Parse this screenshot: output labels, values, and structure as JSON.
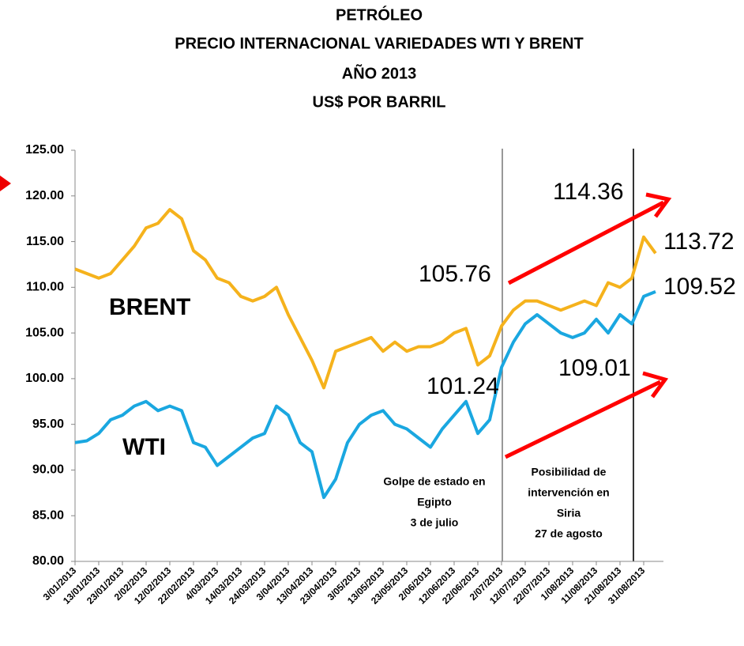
{
  "chart_data": {
    "type": "line",
    "title_lines": [
      "PETRÓLEO",
      "PRECIO INTERNACIONAL VARIEDADES WTI Y BRENT",
      "AÑO 2013",
      "US$ POR BARRIL"
    ],
    "categories": [
      "3/01/2013",
      null,
      "13/01/2013",
      null,
      "23/01/2013",
      null,
      "2/02/2013",
      null,
      "12/02/2013",
      null,
      "22/02/2013",
      null,
      "4/03/2013",
      null,
      "14/03/2013",
      null,
      "24/03/2013",
      null,
      "3/04/2013",
      null,
      "13/04/2013",
      null,
      "23/04/2013",
      null,
      "3/05/2013",
      null,
      "13/05/2013",
      null,
      "23/05/2013",
      null,
      "2/06/2013",
      null,
      "12/06/2013",
      null,
      "22/06/2013",
      null,
      "2/07/2013",
      null,
      "12/07/2013",
      null,
      "22/07/2013",
      null,
      "1/08/2013",
      null,
      "11/08/2013",
      null,
      "21/08/2013",
      null,
      "31/08/2013",
      null
    ],
    "series": [
      {
        "name": "BRENT",
        "color": "#f5b21c",
        "values": [
          112,
          111.5,
          111,
          111.5,
          113,
          114.5,
          116.5,
          117,
          118.5,
          117.5,
          114,
          113,
          111,
          110.5,
          109,
          108.5,
          109,
          110,
          107,
          104.5,
          102,
          99,
          103,
          103.5,
          104,
          104.5,
          103,
          104,
          103,
          103.5,
          103.5,
          104,
          105,
          105.5,
          101.5,
          102.5,
          105.76,
          107.5,
          108.5,
          108.5,
          108,
          107.5,
          108,
          108.5,
          108,
          110.5,
          110,
          111,
          115.5,
          113.72
        ]
      },
      {
        "name": "WTI",
        "color": "#1aa7e0",
        "values": [
          93,
          93.2,
          94,
          95.5,
          96,
          97,
          97.5,
          96.5,
          97,
          96.5,
          93,
          92.5,
          90.5,
          91.5,
          92.5,
          93.5,
          94,
          97,
          96,
          93,
          92,
          87,
          89,
          93,
          95,
          96,
          96.5,
          95,
          94.5,
          93.5,
          92.5,
          94.5,
          96,
          97.5,
          94,
          95.5,
          101.24,
          104,
          106,
          107,
          106,
          105,
          104.5,
          105,
          106.5,
          105,
          107,
          106,
          109,
          109.52
        ]
      }
    ],
    "ylim": [
      80,
      125
    ],
    "yticks": [
      {
        "value": 80,
        "label": "80.00"
      },
      {
        "value": 85,
        "label": "85.00"
      },
      {
        "value": 90,
        "label": "90.00"
      },
      {
        "value": 95,
        "label": "95.00"
      },
      {
        "value": 100,
        "label": "100.00"
      },
      {
        "value": 105,
        "label": "105.00"
      },
      {
        "value": 110,
        "label": "110.00"
      },
      {
        "value": 115,
        "label": "115.00"
      },
      {
        "value": 120,
        "label": "120.00"
      },
      {
        "value": 125,
        "label": "125.00"
      }
    ],
    "annotations": [
      "114.36",
      "113.72",
      "105.76",
      "109.52",
      "101.24",
      "109.01"
    ],
    "events": [
      [
        "Golpe de estado en",
        "Egipto",
        "3 de julio"
      ],
      [
        "Posibilidad de",
        "intervención en",
        "Siria",
        "27 de agosto"
      ]
    ]
  }
}
